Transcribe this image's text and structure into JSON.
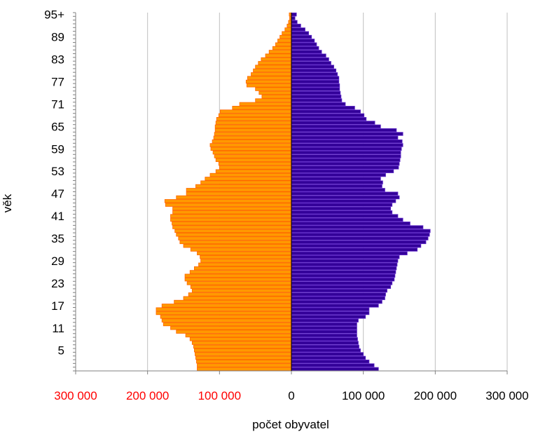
{
  "chart_data": {
    "type": "bar",
    "orientation": "horizontal",
    "subtype": "population-pyramid",
    "xlabel": "počet obyvatel",
    "ylabel": "věk",
    "xlim": [
      -300000,
      300000
    ],
    "grid": true,
    "x_ticks": [
      {
        "value": -300000,
        "label": "300 000",
        "color": "#ff0000"
      },
      {
        "value": -200000,
        "label": "200 000",
        "color": "#ff0000"
      },
      {
        "value": -100000,
        "label": "100 000",
        "color": "#ff0000"
      },
      {
        "value": 0,
        "label": "0",
        "color": "#000000"
      },
      {
        "value": 100000,
        "label": "100 000",
        "color": "#000000"
      },
      {
        "value": 200000,
        "label": "200 000",
        "color": "#000000"
      },
      {
        "value": 300000,
        "label": "300 000",
        "color": "#000000"
      }
    ],
    "categories": [
      "0",
      "1",
      "2",
      "3",
      "4",
      "5",
      "6",
      "7",
      "8",
      "9",
      "10",
      "11",
      "12",
      "13",
      "14",
      "15",
      "16",
      "17",
      "18",
      "19",
      "20",
      "21",
      "22",
      "23",
      "24",
      "25",
      "26",
      "27",
      "28",
      "29",
      "30",
      "31",
      "32",
      "33",
      "34",
      "35",
      "36",
      "37",
      "38",
      "39",
      "40",
      "41",
      "42",
      "43",
      "44",
      "45",
      "46",
      "47",
      "48",
      "49",
      "50",
      "51",
      "52",
      "53",
      "54",
      "55",
      "56",
      "57",
      "58",
      "59",
      "60",
      "61",
      "62",
      "63",
      "64",
      "65",
      "66",
      "67",
      "68",
      "69",
      "70",
      "71",
      "72",
      "73",
      "74",
      "75",
      "76",
      "77",
      "78",
      "79",
      "80",
      "81",
      "82",
      "83",
      "84",
      "85",
      "86",
      "87",
      "88",
      "89",
      "90",
      "91",
      "92",
      "93",
      "94",
      "95+"
    ],
    "y_tick_labels": [
      "5",
      "11",
      "17",
      "23",
      "29",
      "35",
      "41",
      "47",
      "53",
      "59",
      "65",
      "71",
      "77",
      "83",
      "89",
      "95+"
    ],
    "series": [
      {
        "side": "left",
        "color": "#ff9900",
        "edge_color": "#ff6600",
        "values": [
          131000,
          131000,
          132000,
          133000,
          134000,
          135000,
          136000,
          138000,
          141000,
          147000,
          160000,
          168000,
          178000,
          180000,
          182000,
          188000,
          188000,
          180000,
          163000,
          150000,
          143000,
          138000,
          140000,
          145000,
          148000,
          148000,
          141000,
          135000,
          129000,
          126000,
          127000,
          131000,
          140000,
          150000,
          155000,
          157000,
          160000,
          162000,
          165000,
          166000,
          168000,
          168000,
          165000,
          165000,
          175000,
          176000,
          160000,
          146000,
          146000,
          133000,
          126000,
          120000,
          113000,
          105000,
          100000,
          101000,
          105000,
          107000,
          109000,
          112000,
          113000,
          110000,
          108000,
          107000,
          106000,
          106000,
          105000,
          104000,
          101000,
          99000,
          82000,
          72000,
          50000,
          41000,
          45000,
          50000,
          62000,
          63000,
          61000,
          56000,
          53000,
          50000,
          46000,
          42000,
          36000,
          31000,
          26000,
          22000,
          19000,
          16000,
          13000,
          9000,
          6000,
          4000,
          2500,
          3000
        ]
      },
      {
        "side": "right",
        "color": "#330099",
        "edge_color": "#6633cc",
        "values": [
          121000,
          115000,
          108000,
          103000,
          100000,
          96000,
          94000,
          93000,
          92000,
          91000,
          91000,
          91000,
          91000,
          93000,
          103000,
          108000,
          108000,
          121000,
          126000,
          130000,
          131000,
          133000,
          138000,
          140000,
          143000,
          144000,
          145000,
          146000,
          147000,
          148000,
          150000,
          161000,
          175000,
          180000,
          187000,
          190000,
          192000,
          193000,
          183000,
          165000,
          155000,
          148000,
          140000,
          138000,
          140000,
          145000,
          150000,
          148000,
          130000,
          126000,
          127000,
          124000,
          131000,
          142000,
          149000,
          150000,
          151000,
          152000,
          152000,
          153000,
          155000,
          154000,
          148000,
          155000,
          146000,
          124000,
          116000,
          104000,
          101000,
          96000,
          88000,
          75000,
          70000,
          69000,
          68000,
          67000,
          67000,
          66000,
          66000,
          64000,
          62000,
          59000,
          55000,
          52000,
          48000,
          42000,
          38000,
          35000,
          32000,
          28000,
          24000,
          19000,
          13000,
          8000,
          5000,
          7000
        ]
      }
    ]
  }
}
